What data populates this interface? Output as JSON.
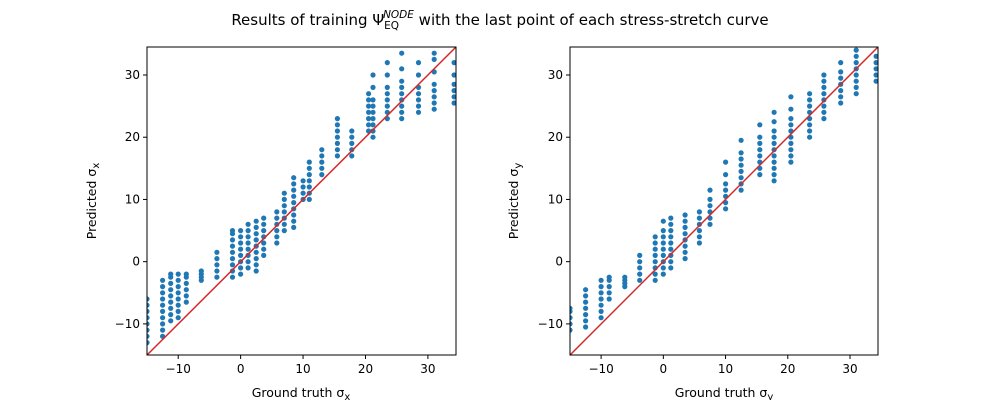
{
  "figure": {
    "title_parts": [
      "Results of training Ψ",
      "EQ",
      "NODE",
      " with the last point of each stress-stretch curve"
    ]
  },
  "chart_data": [
    {
      "type": "scatter",
      "title": "",
      "xlabel_parts": [
        "Ground truth σ",
        "x"
      ],
      "ylabel_parts": [
        "Predicted σ",
        "x"
      ],
      "xlim": [
        -15,
        34.5
      ],
      "ylim": [
        -15,
        34.5
      ],
      "xticks": [
        -10,
        0,
        10,
        20,
        30
      ],
      "yticks": [
        -10,
        0,
        10,
        20,
        30
      ],
      "grid": false,
      "point_color": "#1f77b4",
      "identity_line": {
        "from": [
          -15,
          -15
        ],
        "to": [
          34.5,
          34.5
        ],
        "color": "#d62728"
      },
      "columns": [
        {
          "x": -15.0,
          "y": [
            -13,
            -12,
            -11,
            -10,
            -9,
            -8,
            -7,
            -6
          ]
        },
        {
          "x": -12.5,
          "y": [
            -12,
            -11,
            -10,
            -9,
            -8,
            -7,
            -6,
            -5,
            -4,
            -3
          ]
        },
        {
          "x": -11.2,
          "y": [
            -9.5,
            -8.5,
            -7.5,
            -6.5,
            -5.5,
            -4.5,
            -3.5,
            -2.5,
            -2
          ]
        },
        {
          "x": -10.0,
          "y": [
            -9,
            -8,
            -7,
            -6,
            -5,
            -4,
            -3,
            -2
          ]
        },
        {
          "x": -8.7,
          "y": [
            -6.5,
            -5.5,
            -4.5,
            -3.5,
            -2.5,
            -2
          ]
        },
        {
          "x": -6.3,
          "y": [
            -3,
            -2.5,
            -2,
            -1.5
          ]
        },
        {
          "x": -3.8,
          "y": [
            -2.5,
            -1.5,
            -0.5,
            0.5,
            1.5
          ]
        },
        {
          "x": -1.3,
          "y": [
            -2.5,
            -1.5,
            -0.5,
            0.5,
            1.5,
            2.5,
            3.5,
            4.5,
            5
          ]
        },
        {
          "x": 0.0,
          "y": [
            -2,
            -1,
            0,
            1,
            2,
            3,
            4,
            5
          ]
        },
        {
          "x": 1.2,
          "y": [
            -1,
            0,
            1,
            2,
            3,
            4,
            5,
            6
          ]
        },
        {
          "x": 2.5,
          "y": [
            -1.5,
            -0.5,
            0.5,
            1.5,
            2.5,
            3.5,
            4.5,
            5.5,
            6.5
          ]
        },
        {
          "x": 3.7,
          "y": [
            1,
            2,
            3,
            4,
            5,
            6,
            7
          ]
        },
        {
          "x": 5.8,
          "y": [
            3,
            4,
            5,
            6,
            7,
            8
          ]
        },
        {
          "x": 7.0,
          "y": [
            5,
            6,
            7,
            8,
            9,
            10,
            11
          ]
        },
        {
          "x": 8.5,
          "y": [
            5.5,
            6.5,
            7.5,
            8.5,
            9.5,
            10.5,
            11.5,
            12.5,
            13.5
          ]
        },
        {
          "x": 10.0,
          "y": [
            10,
            11,
            12,
            13
          ]
        },
        {
          "x": 11.0,
          "y": [
            10,
            11,
            12,
            13,
            14,
            15,
            16
          ]
        },
        {
          "x": 13.0,
          "y": [
            14,
            15,
            16,
            17,
            18
          ]
        },
        {
          "x": 15.5,
          "y": [
            17,
            18,
            19,
            20,
            21,
            22,
            23
          ]
        },
        {
          "x": 17.8,
          "y": [
            17,
            18,
            19,
            20,
            21
          ]
        },
        {
          "x": 20.5,
          "y": [
            21,
            22,
            23,
            24,
            25,
            26,
            27
          ]
        },
        {
          "x": 21.2,
          "y": [
            20,
            21,
            22,
            23,
            24,
            25,
            26,
            28,
            30
          ]
        },
        {
          "x": 23.5,
          "y": [
            23,
            24,
            25,
            26,
            27,
            28,
            30,
            32
          ]
        },
        {
          "x": 25.8,
          "y": [
            23,
            24,
            25,
            26,
            27,
            28,
            29,
            31,
            33.5
          ]
        },
        {
          "x": 28.5,
          "y": [
            24,
            25,
            26,
            27,
            28,
            30,
            32
          ]
        },
        {
          "x": 31.0,
          "y": [
            24.5,
            25.5,
            26.5,
            27.5,
            28.5,
            30.5,
            32.5,
            33.5
          ]
        },
        {
          "x": 34.2,
          "y": [
            25.5,
            26.5,
            27.5,
            28.5,
            30,
            32
          ]
        }
      ]
    },
    {
      "type": "scatter",
      "title": "",
      "xlabel_parts": [
        "Ground truth σ",
        "y"
      ],
      "ylabel_parts": [
        "Predicted σ",
        "y"
      ],
      "xlim": [
        -15,
        34.5
      ],
      "ylim": [
        -15,
        34.5
      ],
      "xticks": [
        -10,
        0,
        10,
        20,
        30
      ],
      "yticks": [
        -10,
        0,
        10,
        20,
        30
      ],
      "grid": false,
      "point_color": "#1f77b4",
      "identity_line": {
        "from": [
          -15,
          -15
        ],
        "to": [
          34.5,
          34.5
        ],
        "color": "#d62728"
      },
      "columns": [
        {
          "x": -15.0,
          "y": [
            -11,
            -10,
            -9,
            -8,
            -7.5
          ]
        },
        {
          "x": -12.5,
          "y": [
            -10.5,
            -9.5,
            -8.5,
            -7.5,
            -6.5,
            -5.5,
            -4.5
          ]
        },
        {
          "x": -10.0,
          "y": [
            -9,
            -8,
            -7,
            -6,
            -5,
            -4,
            -3
          ]
        },
        {
          "x": -8.7,
          "y": [
            -6,
            -5,
            -4,
            -3,
            -2.5
          ]
        },
        {
          "x": -6.2,
          "y": [
            -4,
            -3.5,
            -3,
            -2.5
          ]
        },
        {
          "x": -3.8,
          "y": [
            -3,
            -2,
            -1,
            0,
            1
          ]
        },
        {
          "x": -1.3,
          "y": [
            -3,
            -2,
            -1,
            0,
            1,
            2,
            3,
            4
          ]
        },
        {
          "x": 0.0,
          "y": [
            -2,
            -1,
            0,
            1,
            2,
            3,
            4,
            5,
            6.5
          ]
        },
        {
          "x": 1.2,
          "y": [
            -1,
            0,
            1,
            2,
            3,
            4,
            5,
            6,
            7
          ]
        },
        {
          "x": 3.5,
          "y": [
            0.5,
            1.5,
            2.5,
            3.5,
            4.5,
            5.5,
            6.5,
            7.5
          ]
        },
        {
          "x": 5.8,
          "y": [
            3,
            4,
            5,
            6,
            7,
            8
          ]
        },
        {
          "x": 7.5,
          "y": [
            6,
            7,
            8,
            9,
            10,
            11.5
          ]
        },
        {
          "x": 10.0,
          "y": [
            8.5,
            9.5,
            10.5,
            11.5,
            12.5,
            14,
            16
          ]
        },
        {
          "x": 12.5,
          "y": [
            11.5,
            12.5,
            13.5,
            14.5,
            15.5,
            16.5,
            17.5,
            19.5
          ]
        },
        {
          "x": 15.5,
          "y": [
            14,
            15,
            16,
            17,
            18,
            19,
            20,
            22
          ]
        },
        {
          "x": 17.8,
          "y": [
            13,
            14,
            15,
            16,
            17,
            18,
            19,
            20,
            21,
            22.5,
            24
          ]
        },
        {
          "x": 20.5,
          "y": [
            16,
            17,
            18,
            19,
            20,
            21,
            22,
            23,
            24.5,
            26.5
          ]
        },
        {
          "x": 23.5,
          "y": [
            20,
            21,
            22,
            23,
            24,
            25,
            26,
            27
          ]
        },
        {
          "x": 25.8,
          "y": [
            23,
            24,
            25,
            26,
            27,
            28,
            29,
            30
          ]
        },
        {
          "x": 28.5,
          "y": [
            25.5,
            26.5,
            27.5,
            28.5,
            29.5,
            30.5,
            32
          ]
        },
        {
          "x": 31.0,
          "y": [
            27,
            28,
            29,
            30,
            31,
            32,
            33,
            34
          ]
        },
        {
          "x": 34.2,
          "y": [
            29,
            30,
            31,
            32,
            33
          ]
        }
      ]
    }
  ]
}
